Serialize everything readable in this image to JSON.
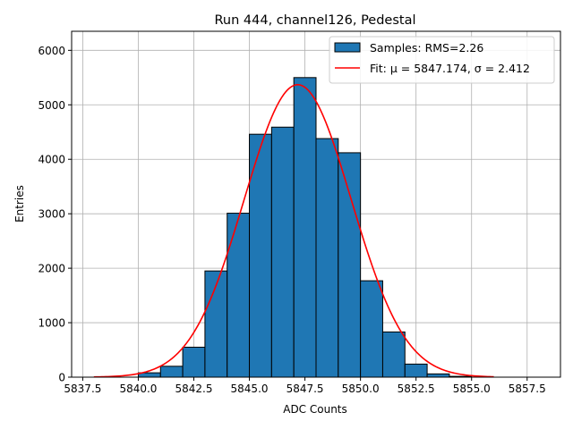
{
  "chart_data": {
    "type": "bar",
    "title": "Run 444, channel126, Pedestal",
    "xlabel": "ADC Counts",
    "ylabel": "Entries",
    "xlim": [
      5837.0,
      5859.0
    ],
    "ylim": [
      0,
      6350
    ],
    "grid": true,
    "legend_position": "top-right",
    "x_ticks": [
      5837.5,
      5840.0,
      5842.5,
      5845.0,
      5847.5,
      5850.0,
      5852.5,
      5855.0,
      5857.5
    ],
    "x_tick_labels": [
      "5837.5",
      "5840.0",
      "5842.5",
      "5845.0",
      "5847.5",
      "5850.0",
      "5852.5",
      "5855.0",
      "5857.5"
    ],
    "y_ticks": [
      0,
      1000,
      2000,
      3000,
      4000,
      5000,
      6000
    ],
    "y_tick_labels": [
      "0",
      "1000",
      "2000",
      "3000",
      "4000",
      "5000",
      "6000"
    ],
    "histogram": {
      "name": "Samples: RMS=2.26",
      "color": "#1f77b4",
      "edge_color": "#000000",
      "bin_edges": [
        5840,
        5841,
        5842,
        5843,
        5844,
        5845,
        5846,
        5847,
        5848,
        5849,
        5850,
        5851,
        5852,
        5853,
        5854,
        5855
      ],
      "values": [
        80,
        200,
        550,
        1950,
        3010,
        4460,
        4590,
        5500,
        4380,
        4120,
        1770,
        830,
        240,
        60,
        15
      ]
    },
    "fit": {
      "name": "Fit: μ = 5847.174, σ = 2.412",
      "color": "#ff0000",
      "mu": 5847.174,
      "sigma": 2.412,
      "amplitude": 5370,
      "x_range": [
        5838,
        5856
      ]
    }
  }
}
